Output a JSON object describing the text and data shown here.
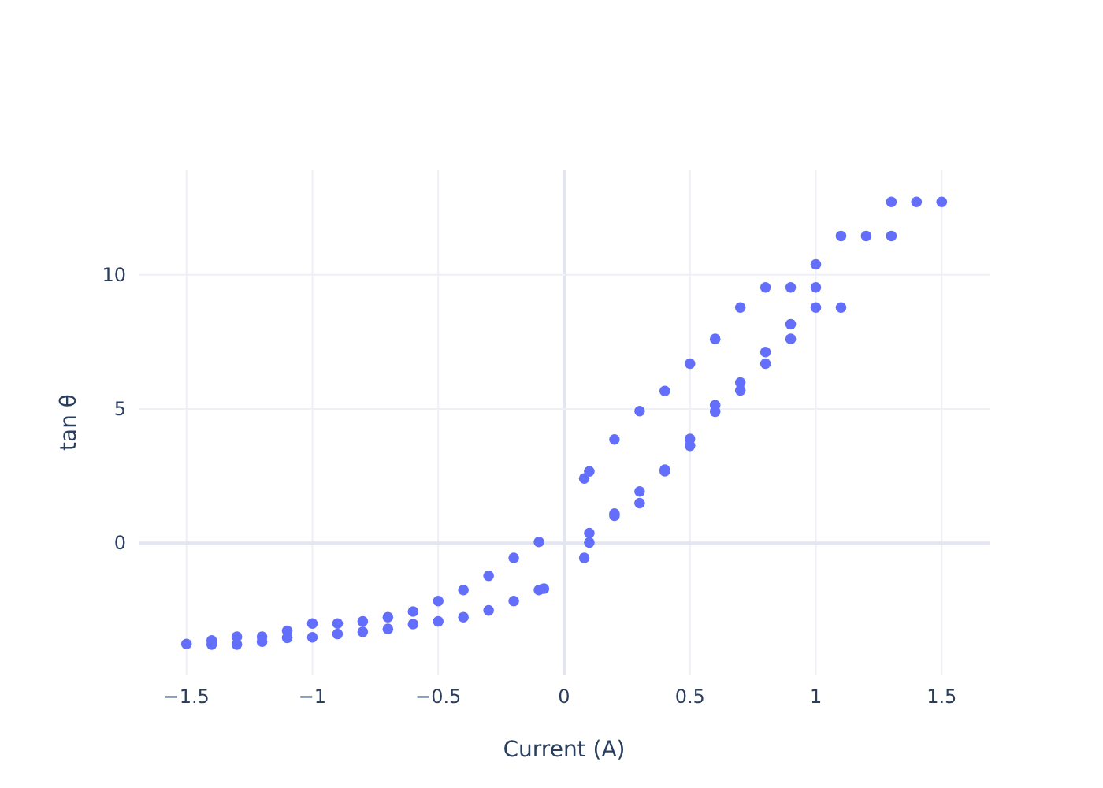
{
  "chart_data": {
    "type": "scatter",
    "xlabel": "Current (A)",
    "ylabel": "tan θ",
    "xlim": [
      -1.69,
      1.69
    ],
    "ylim": [
      -4.9,
      13.9
    ],
    "xticks": [
      {
        "value": -1.5,
        "label": "−1.5"
      },
      {
        "value": -1,
        "label": "−1"
      },
      {
        "value": -0.5,
        "label": "−0.5"
      },
      0,
      0.5,
      1,
      1.5
    ],
    "yticks": [
      0,
      5,
      10
    ],
    "grid": true,
    "marker": "circle",
    "series": [
      {
        "color": "#636efa",
        "x": [
          -1.5,
          -1.4,
          -1.4,
          -1.3,
          -1.3,
          -1.2,
          -1.2,
          -1.1,
          -1.1,
          -1.0,
          -1.0,
          -0.9,
          -0.9,
          -0.8,
          -0.8,
          -0.7,
          -0.7,
          -0.6,
          -0.6,
          -0.5,
          -0.5,
          -0.4,
          -0.4,
          -0.3,
          -0.3,
          -0.2,
          -0.2,
          -0.1,
          -0.1,
          -0.08,
          0.08,
          0.08,
          0.1,
          0.1,
          0.1,
          0.2,
          0.2,
          0.2,
          0.3,
          0.3,
          0.3,
          0.4,
          0.4,
          0.4,
          0.5,
          0.5,
          0.5,
          0.6,
          0.6,
          0.6,
          0.7,
          0.7,
          0.7,
          0.8,
          0.8,
          0.8,
          0.9,
          0.9,
          0.9,
          1.0,
          1.0,
          1.0,
          1.1,
          1.1,
          1.2,
          1.3,
          1.3,
          1.4,
          1.5
        ],
        "values": [
          -3.76,
          -3.63,
          -3.78,
          -3.49,
          -3.78,
          -3.49,
          -3.67,
          -3.27,
          -3.53,
          -3.0,
          -3.51,
          -3.0,
          -3.39,
          -2.92,
          -3.31,
          -2.76,
          -3.2,
          -2.55,
          -3.02,
          -2.16,
          -2.92,
          -1.75,
          -2.76,
          -1.22,
          -2.51,
          -0.55,
          -2.16,
          0.04,
          -1.75,
          -1.7,
          2.41,
          -0.55,
          2.67,
          0.37,
          0.02,
          3.86,
          1.1,
          1.02,
          4.92,
          1.92,
          1.49,
          5.67,
          2.74,
          2.68,
          6.69,
          3.88,
          3.63,
          7.61,
          5.14,
          4.9,
          8.78,
          5.98,
          5.69,
          9.53,
          7.12,
          6.69,
          9.53,
          8.16,
          7.61,
          10.39,
          9.53,
          8.78,
          11.45,
          8.78,
          11.45,
          12.72,
          11.45,
          12.72,
          12.72
        ]
      }
    ]
  }
}
